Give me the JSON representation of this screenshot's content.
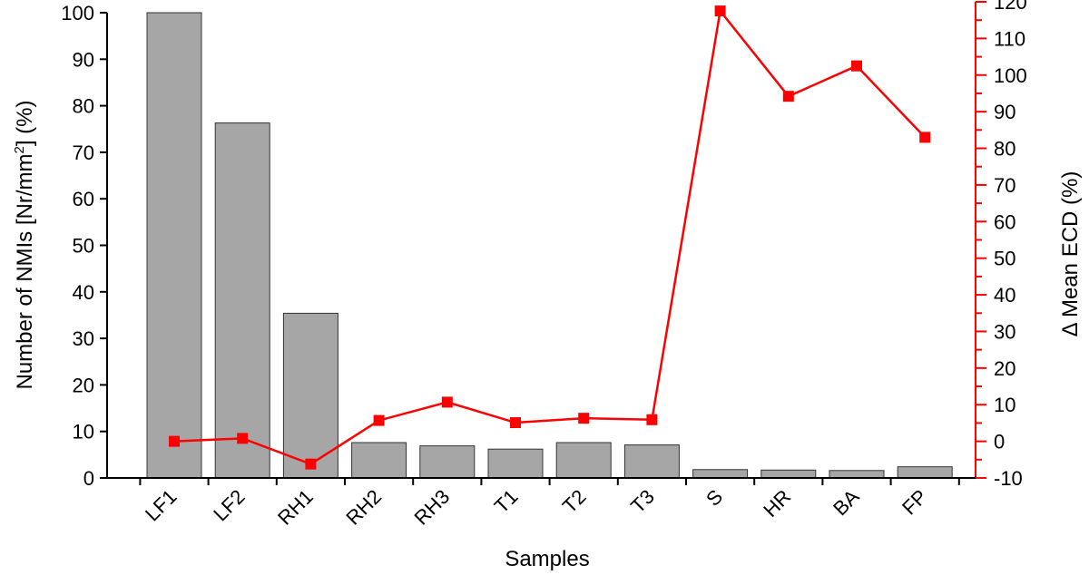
{
  "chart_data": {
    "type": "bar",
    "categories": [
      "LF1",
      "LF2",
      "RH1",
      "RH2",
      "RH3",
      "T1",
      "T2",
      "T3",
      "S",
      "HR",
      "BA",
      "FP"
    ],
    "series": [
      {
        "type": "bar",
        "axis": "left",
        "values": [
          100,
          76.3,
          35.4,
          7.6,
          6.9,
          6.2,
          7.6,
          7.1,
          1.8,
          1.7,
          1.6,
          2.4
        ]
      },
      {
        "type": "line",
        "axis": "right",
        "values": [
          0,
          0.8,
          -6.2,
          5.7,
          10.7,
          5.1,
          6.3,
          5.9,
          117.5,
          94.2,
          102.5,
          83.0
        ]
      }
    ],
    "xlabel": "Samples",
    "ylabel_prefix": "Number of NMIs [Nr/mm",
    "ylabel_sup": "2",
    "ylabel_suffix": "] (%)",
    "y2label": "Δ Mean ECD (%)",
    "ylim": [
      0,
      100
    ],
    "y2lim": [
      -10,
      120
    ],
    "yticks": [
      0,
      10,
      20,
      30,
      40,
      50,
      60,
      70,
      80,
      90,
      100
    ],
    "y2ticks": [
      -10,
      0,
      10,
      20,
      30,
      40,
      50,
      60,
      70,
      80,
      90,
      100,
      110,
      120
    ],
    "colors": {
      "bar_fill": "#a6a6a6",
      "bar_stroke": "#333333",
      "line": "#ff0000",
      "right_axis": "#ff0000",
      "left_axis": "#000000"
    },
    "grid": false,
    "legend": "none"
  }
}
